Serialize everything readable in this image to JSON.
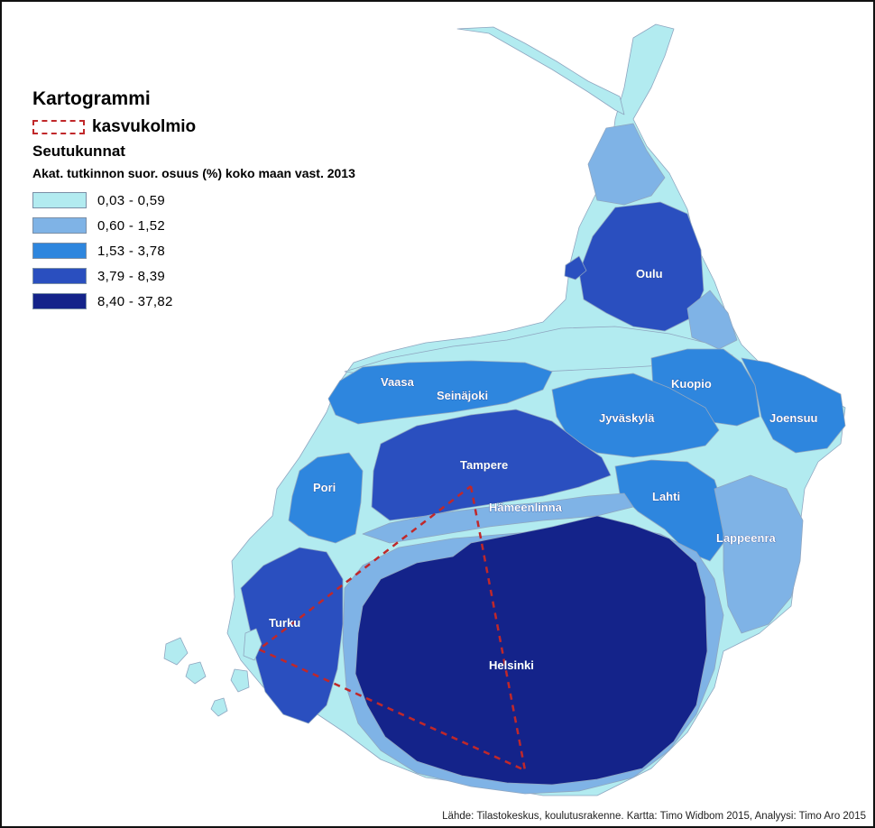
{
  "legend": {
    "title": "Kartogrammi",
    "triangle_label": "kasvukolmio",
    "layer_title": "Seutukunnat",
    "attribute_title": "Akat. tutkinnon suor. osuus (%) koko maan vast. 2013",
    "classes": [
      {
        "label": "0,03 - 0,59",
        "color": "#b2ebf0"
      },
      {
        "label": "0,60 - 1,52",
        "color": "#7fb3e6"
      },
      {
        "label": "1,53 - 3,78",
        "color": "#2e86de"
      },
      {
        "label": "3,79 - 8,39",
        "color": "#2a4fbf"
      },
      {
        "label": "8,40 - 37,82",
        "color": "#14238a"
      }
    ]
  },
  "regions": {
    "oulu": "Oulu",
    "vaasa": "Vaasa",
    "seinajoki": "Seinäjoki",
    "kuopio": "Kuopio",
    "jyvaskyla": "Jyväskylä",
    "joensuu": "Joensuu",
    "tampere": "Tampere",
    "pori": "Pori",
    "hameenlinna": "Hämeenlinna",
    "lahti": "Lahti",
    "lappeenranta": "Lappeenra",
    "turku": "Turku",
    "helsinki": "Helsinki"
  },
  "source": "Lähde: Tilastokeskus, koulutusrakenne. Kartta: Timo Widbom 2015, Analyysi: Timo Aro 2015"
}
